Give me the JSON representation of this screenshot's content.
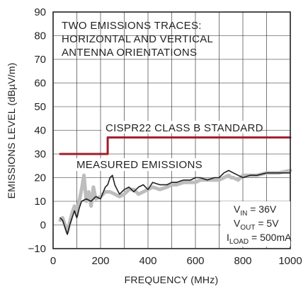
{
  "chart_data": {
    "type": "line",
    "xlabel": "FREQUENCY (MHz)",
    "ylabel": "EMISSIONS LEVEL (dBµV/m)",
    "xlim": [
      0,
      1000
    ],
    "ylim": [
      -10,
      90
    ],
    "x_ticks": [
      0,
      200,
      400,
      600,
      800,
      1000
    ],
    "y_ticks": [
      -10,
      0,
      10,
      20,
      30,
      40,
      50,
      60,
      70,
      80,
      90
    ],
    "grid": true,
    "annotations": {
      "top_note_line1": "TWO EMISSIONS TRACES:",
      "top_note_line2": "HORIZONTAL AND VERTICAL",
      "top_note_line3": "ANTENNA ORIENTATIONS",
      "standard_label": "CISPR22 CLASS B STANDARD",
      "measured_label": "MEASURED EMISSIONS",
      "cond_vin_prefix": "V",
      "cond_vin_sub": "IN",
      "cond_vin_value": " = 36V",
      "cond_vout_prefix": "V",
      "cond_vout_sub": "OUT",
      "cond_vout_value": " = 5V",
      "cond_iload_prefix": "I",
      "cond_iload_sub": "LOAD",
      "cond_iload_value": " = 500mA"
    },
    "series": [
      {
        "role": "limit",
        "color": "#a01d2b",
        "x": [
          30,
          230,
          230,
          1000
        ],
        "y": [
          30,
          30,
          37,
          37
        ]
      },
      {
        "role": "measured-trace-1",
        "color": "#bdbdbd",
        "x": [
          30,
          40,
          50,
          60,
          70,
          80,
          90,
          100,
          110,
          120,
          130,
          140,
          150,
          160,
          170,
          180,
          200,
          220,
          240,
          260,
          280,
          300,
          320,
          340,
          360,
          380,
          400,
          420,
          450,
          480,
          500,
          520,
          550,
          580,
          600,
          620,
          650,
          680,
          700,
          720,
          740,
          750,
          760,
          780,
          800,
          830,
          860,
          900,
          950,
          1000
        ],
        "y": [
          2,
          3,
          0,
          -3,
          1,
          5,
          8,
          4,
          10,
          15,
          21,
          10,
          14,
          8,
          16,
          11,
          12,
          14,
          14,
          13,
          12,
          13,
          15,
          15,
          13,
          14,
          15,
          16,
          15,
          16,
          17,
          17,
          18,
          18,
          18,
          19,
          19,
          19,
          19,
          20,
          21,
          20,
          20,
          19,
          21,
          21,
          21,
          22,
          22,
          23
        ]
      },
      {
        "role": "measured-trace-2",
        "color": "#231f20",
        "x": [
          30,
          40,
          50,
          60,
          70,
          80,
          90,
          100,
          110,
          120,
          140,
          160,
          180,
          200,
          220,
          230,
          240,
          250,
          260,
          270,
          280,
          300,
          320,
          340,
          360,
          380,
          400,
          420,
          450,
          480,
          500,
          520,
          550,
          580,
          600,
          620,
          650,
          680,
          700,
          720,
          740,
          760,
          780,
          800,
          830,
          860,
          900,
          950,
          1000
        ],
        "y": [
          3,
          2,
          -1,
          -4,
          0,
          3,
          6,
          3,
          7,
          10,
          11,
          10,
          12,
          11,
          16,
          17,
          20,
          21,
          17,
          15,
          13,
          15,
          16,
          14,
          16,
          17,
          15,
          18,
          17,
          17,
          18,
          18,
          19,
          19,
          20,
          20,
          19,
          20,
          20,
          22,
          23,
          22,
          21,
          20,
          21,
          21,
          22,
          22,
          22
        ]
      }
    ]
  }
}
